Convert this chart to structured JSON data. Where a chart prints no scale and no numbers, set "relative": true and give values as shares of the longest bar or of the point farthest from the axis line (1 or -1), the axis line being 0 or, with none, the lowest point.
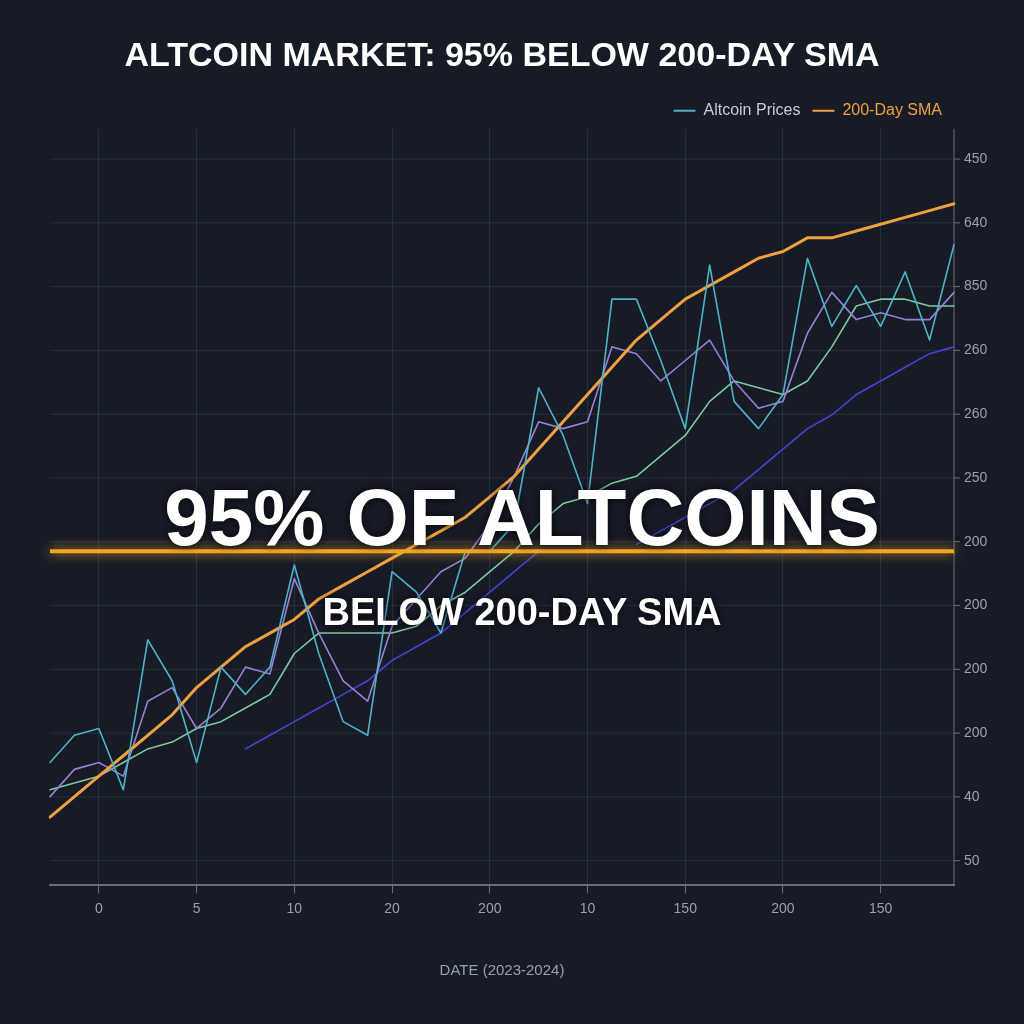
{
  "chart_data": {
    "type": "line",
    "title": "ALTCOIN MARKET: 95% BELOW 200-DAY SMA",
    "xlabel": "DATE (2023-2024)",
    "annotations": [
      "95% OF ALTCOINS",
      "BELOW 200-DAY SMA",
      "450",
      "640",
      "850",
      "260",
      "260",
      "250",
      "200",
      "200",
      "200",
      "200",
      "40",
      "50"
    ],
    "categories": [
      null,
      null,
      "0",
      null,
      null,
      null,
      "5",
      null,
      null,
      null,
      "10",
      null,
      null,
      null,
      "20",
      null,
      null,
      null,
      "200",
      null,
      null,
      null,
      "10",
      null,
      null,
      null,
      "150",
      null,
      null,
      null,
      "200",
      null,
      null,
      null,
      "150",
      null,
      null,
      null
    ],
    "relative": true,
    "grid": true,
    "legend": "top right",
    "marker": "none",
    "line_style": "solid",
    "ref_lines": [
      {
        "axis": "y",
        "value": 0.49,
        "color": "#f5a623"
      }
    ],
    "series": [
      {
        "name": "Altcoin Prices",
        "color": "#4fb3c8",
        "values": [
          0.18,
          0.22,
          0.23,
          0.14,
          0.36,
          0.3,
          0.18,
          0.32,
          0.28,
          0.32,
          0.47,
          0.34,
          0.24,
          0.22,
          0.46,
          0.43,
          0.37,
          0.49,
          0.49,
          0.53,
          0.73,
          0.66,
          0.56,
          0.86,
          0.86,
          0.77,
          0.67,
          0.91,
          0.71,
          0.67,
          0.72,
          0.92,
          0.82,
          0.88,
          0.82,
          0.9,
          0.8,
          0.94
        ]
      },
      {
        "name": "200-Day SMA",
        "color": "#f0a040",
        "values": [
          0.1,
          0.13,
          0.16,
          0.19,
          0.22,
          0.25,
          0.29,
          0.32,
          0.35,
          0.37,
          0.39,
          0.42,
          0.44,
          0.46,
          0.48,
          0.5,
          0.52,
          0.54,
          0.57,
          0.6,
          0.64,
          0.68,
          0.72,
          0.76,
          0.8,
          0.83,
          0.86,
          0.88,
          0.9,
          0.92,
          0.93,
          0.95,
          0.95,
          0.96,
          0.97,
          0.98,
          0.99,
          1.0
        ]
      },
      {
        "color": "#9a7fd6",
        "values": [
          0.13,
          0.17,
          0.18,
          0.16,
          0.27,
          0.29,
          0.23,
          0.26,
          0.32,
          0.31,
          0.45,
          0.37,
          0.3,
          0.27,
          0.38,
          0.42,
          0.46,
          0.48,
          0.53,
          0.6,
          0.68,
          0.67,
          0.68,
          0.79,
          0.78,
          0.74,
          0.77,
          0.8,
          0.74,
          0.7,
          0.71,
          0.81,
          0.87,
          0.83,
          0.84,
          0.83,
          0.83,
          0.87
        ]
      },
      {
        "color": "#7fc9a0",
        "values": [
          0.14,
          0.15,
          0.16,
          0.18,
          0.2,
          0.21,
          0.23,
          0.24,
          0.26,
          0.28,
          0.34,
          0.37,
          0.37,
          0.37,
          0.37,
          0.38,
          0.41,
          0.43,
          0.46,
          0.49,
          0.53,
          0.56,
          0.57,
          0.59,
          0.6,
          0.63,
          0.66,
          0.71,
          0.74,
          0.73,
          0.72,
          0.74,
          0.79,
          0.85,
          0.86,
          0.86,
          0.85,
          0.85
        ]
      },
      {
        "color": "#4a3fd0",
        "values": [
          null,
          null,
          null,
          null,
          null,
          null,
          null,
          null,
          0.2,
          0.22,
          0.24,
          0.26,
          0.28,
          0.3,
          0.33,
          0.35,
          0.37,
          0.4,
          0.43,
          0.46,
          0.49,
          null,
          null,
          null,
          0.5,
          0.52,
          0.54,
          0.56,
          0.58,
          0.61,
          0.64,
          0.67,
          0.69,
          0.72,
          0.74,
          0.76,
          0.78,
          0.79
        ]
      }
    ]
  }
}
